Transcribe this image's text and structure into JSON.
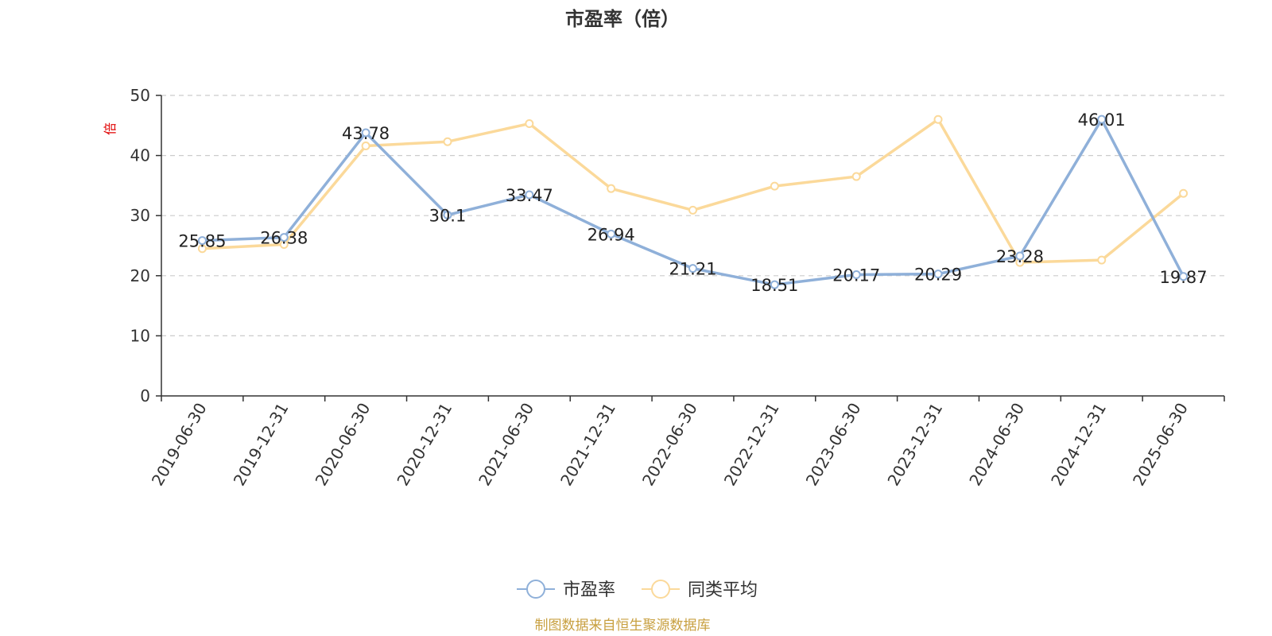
{
  "chart_data": {
    "type": "line",
    "title": "市盈率（倍）",
    "ylabel": "倍",
    "ylim": [
      0,
      50
    ],
    "yticks": [
      0,
      10,
      20,
      30,
      40,
      50
    ],
    "grid": true,
    "legend_position": "bottom-center",
    "categories": [
      "2019-06-30",
      "2019-12-31",
      "2020-06-30",
      "2020-12-31",
      "2021-06-30",
      "2021-12-31",
      "2022-06-30",
      "2022-12-31",
      "2023-06-30",
      "2023-12-31",
      "2024-06-30",
      "2024-12-31",
      "2025-06-30"
    ],
    "series": [
      {
        "name": "市盈率",
        "color": "#8fb0d9",
        "values": [
          25.85,
          26.38,
          43.78,
          30.1,
          33.47,
          26.94,
          21.21,
          18.51,
          20.17,
          20.29,
          23.28,
          46.01,
          19.87
        ],
        "labels": [
          "25.85",
          "26.38",
          "43.78",
          "30.1",
          "33.47",
          "26.94",
          "21.21",
          "18.51",
          "20.17",
          "20.29",
          "23.28",
          "46.01",
          "19.87"
        ]
      },
      {
        "name": "同类平均",
        "color": "#fbd99a",
        "values": [
          24.5,
          25.2,
          41.6,
          42.3,
          45.3,
          34.5,
          30.9,
          34.9,
          36.5,
          46.0,
          22.2,
          22.6,
          33.7
        ]
      }
    ]
  },
  "footer": {
    "source": "制图数据来自恒生聚源数据库"
  }
}
